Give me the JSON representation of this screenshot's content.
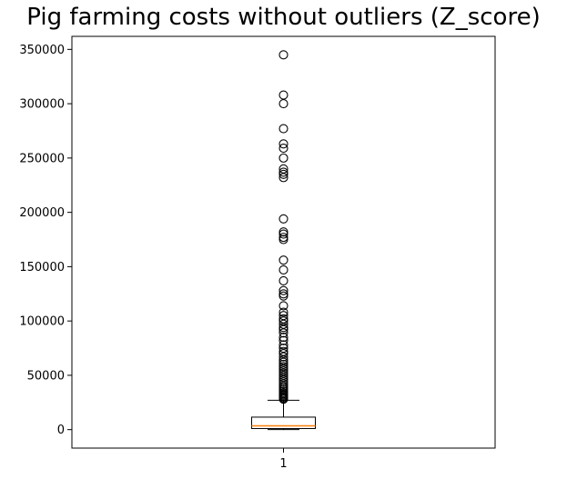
{
  "chart_data": {
    "type": "box",
    "title": "Pig farming costs without outliers (Z_score)",
    "xlabel": "",
    "ylabel": "",
    "categories": [
      "1"
    ],
    "ylim": [
      -17000,
      362000
    ],
    "yticks": [
      0,
      50000,
      100000,
      150000,
      200000,
      250000,
      300000,
      350000
    ],
    "ytick_labels": [
      "0",
      "50000",
      "100000",
      "150000",
      "200000",
      "250000",
      "300000",
      "350000"
    ],
    "grid": false,
    "box": {
      "whisker_low": 0,
      "q1": 1000,
      "median": 3500,
      "q3": 11500,
      "whisker_high": 27000
    },
    "outliers": [
      345000,
      308000,
      300000,
      277000,
      263000,
      259000,
      250000,
      240000,
      237000,
      235000,
      232000,
      194000,
      182000,
      180000,
      177000,
      175000,
      156000,
      147000,
      137000,
      128000,
      125000,
      123000,
      114000,
      108000,
      105000,
      102000,
      100000,
      97000,
      94000,
      92000,
      89000,
      85000,
      82000,
      78000,
      75000,
      72000,
      70000,
      67000,
      64000,
      62000,
      60000,
      58000,
      56000,
      54000,
      52000,
      50000,
      48000,
      46000,
      44000,
      42000,
      40000,
      38500,
      37000,
      35500,
      34000,
      33000,
      32000,
      31000,
      30000,
      29000,
      28000
    ],
    "colors": {
      "box": "#000000",
      "median": "#ff7f0e",
      "flier": "#000000"
    }
  }
}
